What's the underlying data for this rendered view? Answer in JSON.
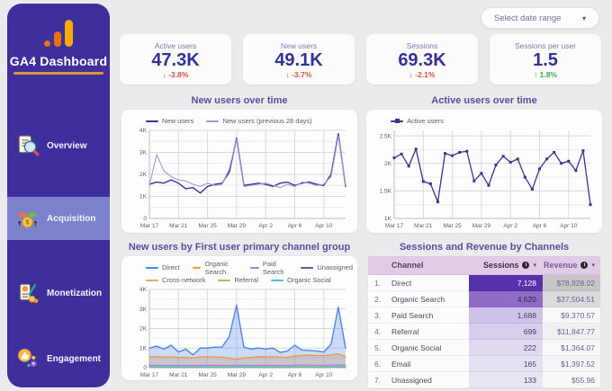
{
  "sidebar": {
    "title": "GA4 Dashboard",
    "items": [
      {
        "label": "Overview",
        "icon": "overview-document-magnifier-icon",
        "active": false
      },
      {
        "label": "Acquisition",
        "icon": "acquisition-handshake-coin-icon",
        "active": true
      },
      {
        "label": "Monetization",
        "icon": "monetization-receipt-coins-icon",
        "active": false
      },
      {
        "label": "Engagement",
        "icon": "engagement-thumbs-up-icon",
        "active": false
      }
    ]
  },
  "header": {
    "date_range_label": "Select date range"
  },
  "kpis": [
    {
      "label": "Active users",
      "value": "47.3K",
      "delta": "-3.8%",
      "direction": "down"
    },
    {
      "label": "New users",
      "value": "49.1K",
      "delta": "-3.7%",
      "direction": "down"
    },
    {
      "label": "Sessions",
      "value": "69.3K",
      "delta": "-2.1%",
      "direction": "down"
    },
    {
      "label": "Sessions per user",
      "value": "1.5",
      "delta": "1.8%",
      "direction": "up"
    }
  ],
  "colors": {
    "delta_down": "#d94f43",
    "delta_up": "#3fa45b",
    "sessions_cell_bg": [
      "#5531ab",
      "#8f6dc6",
      "#cdc2e7",
      "#d7cdec",
      "#e0d9f0",
      "#e6e0f3",
      "#eae5f5"
    ],
    "sessions_cell_text": [
      "#ffffff",
      "#2e2646",
      "#453f63",
      "#453f63",
      "#453f63",
      "#453f63",
      "#453f63"
    ],
    "revenue_cell_bg": [
      "#c7c5c6",
      "#dcdadc",
      "#f9f8f9",
      "#f2f0f3",
      "#f9f8f9",
      "#f6f4f7",
      "#f9f8f9"
    ]
  },
  "chart_data": [
    {
      "type": "line",
      "title": "New users over time",
      "n_points": 28,
      "x_tick_labels": [
        "Mar 17",
        "Mar 21",
        "Mar 25",
        "Mar 29",
        "Apr 2",
        "Apr 6",
        "Apr 10"
      ],
      "x_tick_indices": [
        0,
        4,
        8,
        12,
        16,
        20,
        24
      ],
      "ylim": [
        0,
        4000
      ],
      "y_minor_step": 500,
      "yticks": [
        {
          "v": 0,
          "label": "0"
        },
        {
          "v": 1000,
          "label": "1K"
        },
        {
          "v": 2000,
          "label": "2K"
        },
        {
          "v": 3000,
          "label": "3K"
        },
        {
          "v": 4000,
          "label": "4K"
        }
      ],
      "legend_rows": [
        [
          0,
          1
        ]
      ],
      "series": [
        {
          "name": "New users",
          "color": "#37368f",
          "width": 1.4,
          "values": [
            1550,
            1650,
            1600,
            1750,
            1600,
            1350,
            1400,
            1150,
            1450,
            1550,
            1600,
            2100,
            3650,
            1500,
            1550,
            1600,
            1550,
            1450,
            1600,
            1650,
            1500,
            1600,
            1650,
            1550,
            1500,
            2000,
            3850,
            1450
          ]
        },
        {
          "name": "New users (previous 28 days)",
          "color": "#9c99d8",
          "width": 1.1,
          "values": [
            1500,
            2900,
            2150,
            1900,
            1750,
            1700,
            1550,
            1450,
            1600,
            1500,
            1550,
            2250,
            3600,
            1450,
            1500,
            1550,
            1600,
            1500,
            1400,
            1550,
            1450,
            1650,
            1600,
            1500,
            1550,
            1900,
            3750,
            1500
          ]
        }
      ]
    },
    {
      "type": "line",
      "title": "Active users over time",
      "n_points": 28,
      "x_tick_labels": [
        "Mar 17",
        "Mar 21",
        "Mar 25",
        "Mar 29",
        "Apr 2",
        "Apr 6",
        "Apr 10"
      ],
      "x_tick_indices": [
        0,
        4,
        8,
        12,
        16,
        20,
        24
      ],
      "ylim": [
        1000,
        2600
      ],
      "y_minor_step": 250,
      "yticks": [
        {
          "v": 1000,
          "label": "1K"
        },
        {
          "v": 1500,
          "label": "1.5K"
        },
        {
          "v": 2000,
          "label": "2K"
        },
        {
          "v": 2500,
          "label": "2.5K"
        }
      ],
      "legend_rows": [
        [
          0
        ]
      ],
      "series": [
        {
          "name": "Active users",
          "color": "#37368f",
          "width": 1.3,
          "marker": true,
          "values": [
            2100,
            2170,
            1950,
            2260,
            1670,
            1630,
            1300,
            2180,
            2140,
            2200,
            2220,
            1680,
            1820,
            1600,
            1970,
            2130,
            2020,
            2080,
            1750,
            1530,
            1900,
            2080,
            2200,
            2000,
            2040,
            1870,
            2230,
            1250
          ]
        }
      ]
    },
    {
      "type": "area",
      "title": "New users by First user primary channel group",
      "n_points": 28,
      "x_tick_labels": [
        "Mar 17",
        "Mar 21",
        "Mar 25",
        "Mar 29",
        "Apr 2",
        "Apr 6",
        "Apr 10"
      ],
      "x_tick_indices": [
        0,
        4,
        8,
        12,
        16,
        20,
        24
      ],
      "ylim": [
        0,
        4000
      ],
      "y_minor_step": 500,
      "yticks": [
        {
          "v": 0,
          "label": "0"
        },
        {
          "v": 1000,
          "label": "1K"
        },
        {
          "v": 2000,
          "label": "2K"
        },
        {
          "v": 3000,
          "label": "3K"
        },
        {
          "v": 4000,
          "label": "4K"
        }
      ],
      "legend_rows": [
        [
          0,
          1,
          2,
          3
        ],
        [
          4,
          5,
          6
        ]
      ],
      "series": [
        {
          "name": "Direct",
          "color": "#4e86ec",
          "width": 1.4,
          "fill_opacity": 0.28,
          "values": [
            1000,
            1100,
            950,
            1150,
            800,
            950,
            650,
            1000,
            1000,
            1050,
            1050,
            1600,
            3200,
            1050,
            950,
            1000,
            950,
            1000,
            780,
            850,
            1150,
            900,
            880,
            850,
            800,
            1200,
            3100,
            1000
          ]
        },
        {
          "name": "Organic Search",
          "color": "#f0973f",
          "width": 1.3,
          "fill_opacity": 0.3,
          "values": [
            550,
            560,
            540,
            550,
            520,
            530,
            500,
            550,
            560,
            550,
            540,
            480,
            420,
            500,
            520,
            560,
            550,
            560,
            540,
            520,
            600,
            620,
            630,
            620,
            610,
            650,
            700,
            560
          ]
        },
        {
          "name": "Paid Search",
          "color": "#a97ee0",
          "width": 1.1,
          "fill_opacity": 0.3,
          "values": [
            120,
            125,
            115,
            120,
            110,
            115,
            105,
            120,
            120,
            125,
            120,
            115,
            130,
            120,
            115,
            120,
            125,
            120,
            115,
            110,
            130,
            135,
            130,
            125,
            120,
            130,
            140,
            125
          ]
        },
        {
          "name": "Unassigned",
          "color": "#5b5f9e",
          "width": 1.1,
          "fill_opacity": 0,
          "values": [
            15,
            16,
            14,
            15,
            13,
            14,
            12,
            15,
            16,
            15,
            14,
            13,
            17,
            15,
            14,
            15,
            16,
            15,
            13,
            12,
            17,
            18,
            17,
            16,
            15,
            17,
            19,
            15
          ]
        },
        {
          "name": "Cross-network",
          "color": "#e0a96e",
          "width": 1.1,
          "fill_opacity": 0.35,
          "values": [
            90,
            95,
            85,
            90,
            85,
            88,
            80,
            90,
            92,
            90,
            88,
            85,
            95,
            90,
            88,
            90,
            92,
            90,
            85,
            82,
            95,
            100,
            98,
            95,
            92,
            95,
            105,
            90
          ]
        },
        {
          "name": "Referral",
          "color": "#a5c261",
          "width": 1.1,
          "fill_opacity": 0,
          "values": [
            50,
            52,
            48,
            50,
            45,
            48,
            42,
            50,
            52,
            50,
            48,
            45,
            55,
            50,
            48,
            50,
            52,
            50,
            45,
            42,
            55,
            58,
            55,
            52,
            50,
            55,
            60,
            50
          ]
        },
        {
          "name": "Organic Social",
          "color": "#45c3d4",
          "width": 1.1,
          "fill_opacity": 0,
          "values": [
            25,
            26,
            24,
            25,
            23,
            24,
            22,
            25,
            26,
            25,
            24,
            23,
            27,
            25,
            24,
            25,
            26,
            25,
            23,
            22,
            27,
            28,
            27,
            26,
            25,
            27,
            29,
            25
          ]
        }
      ]
    },
    {
      "type": "table",
      "title": "Sessions and Revenue by Channels",
      "columns": [
        {
          "label": "Channel",
          "sortable": false
        },
        {
          "label": "Sessions",
          "sortable": true
        },
        {
          "label": "Revenue",
          "sortable": true
        }
      ],
      "rows": [
        {
          "rank": "1.",
          "channel": "Direct",
          "sessions": "7,128",
          "revenue": "$78,828.02"
        },
        {
          "rank": "2.",
          "channel": "Organic Search",
          "sessions": "4,620",
          "revenue": "$37,504.51"
        },
        {
          "rank": "3.",
          "channel": "Paid Search",
          "sessions": "1,688",
          "revenue": "$9,370.57"
        },
        {
          "rank": "4.",
          "channel": "Referral",
          "sessions": "699",
          "revenue": "$11,847.77"
        },
        {
          "rank": "5.",
          "channel": "Organic Social",
          "sessions": "222",
          "revenue": "$1,364.07"
        },
        {
          "rank": "6.",
          "channel": "Email",
          "sessions": "165",
          "revenue": "$1,397.52"
        },
        {
          "rank": "7.",
          "channel": "Unassigned",
          "sessions": "133",
          "revenue": "$55.96"
        }
      ]
    }
  ]
}
